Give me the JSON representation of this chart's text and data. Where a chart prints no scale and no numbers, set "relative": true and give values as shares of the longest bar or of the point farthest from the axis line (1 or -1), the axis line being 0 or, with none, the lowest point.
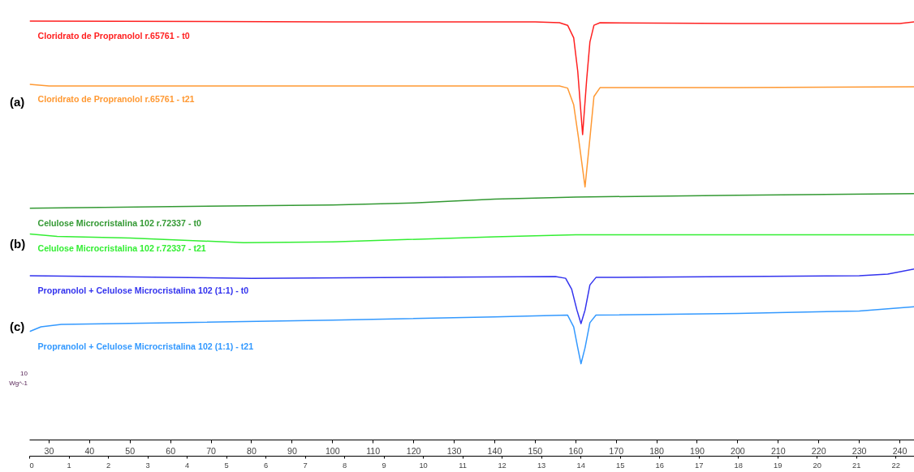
{
  "chart_data": {
    "type": "line",
    "relative": true,
    "xlim": [
      25.2,
      243.6
    ],
    "xticks": [
      30,
      40,
      50,
      60,
      70,
      80,
      90,
      100,
      110,
      120,
      130,
      140,
      150,
      160,
      170,
      180,
      190,
      200,
      210,
      220,
      230,
      240
    ],
    "x2lim": [
      0,
      22.47
    ],
    "x2ticks": [
      0,
      1,
      2,
      3,
      4,
      5,
      6,
      7,
      8,
      9,
      10,
      11,
      12,
      13,
      14,
      15,
      16,
      17,
      18,
      19,
      20,
      21,
      22
    ],
    "grid": false,
    "legend": false,
    "marker": "none",
    "line_style": "solid",
    "annotations": [
      "(a)",
      "(b)",
      "(c)",
      "10",
      "Wg^-1"
    ],
    "series": [
      {
        "name": "Cloridrato de Propranolol r.65761 - t0",
        "color": "#ff2020",
        "x": [
          25.2,
          100,
          150,
          156,
          158,
          159.5,
          160.5,
          161.7,
          162.7,
          163.5,
          164.5,
          166,
          200,
          240,
          243.6
        ],
        "values": [
          1.0,
          0.998,
          0.998,
          0.996,
          0.99,
          0.96,
          0.88,
          0.729,
          0.86,
          0.95,
          0.99,
          0.996,
          0.994,
          0.994,
          0.998
        ]
      },
      {
        "name": "Cloridrato de Propranolol r.65761 - t21",
        "color": "#ff9933",
        "x": [
          25.2,
          30,
          100,
          156,
          158,
          159.5,
          160.7,
          162.3,
          163.5,
          164.5,
          166,
          200,
          243.6
        ],
        "values": [
          0.849,
          0.845,
          0.845,
          0.845,
          0.84,
          0.8,
          0.72,
          0.604,
          0.72,
          0.82,
          0.841,
          0.841,
          0.843
        ]
      },
      {
        "name": "Celulose Microcristalina 102 r.72337 - t0",
        "color": "#339933",
        "x": [
          25.2,
          60,
          100,
          120,
          140,
          160,
          200,
          243.6
        ],
        "values": [
          0.553,
          0.557,
          0.561,
          0.566,
          0.575,
          0.58,
          0.584,
          0.588
        ]
      },
      {
        "name": "Celulose Microcristalina 102 r.72337 - t21",
        "color": "#33ee33",
        "x": [
          25.2,
          32,
          50,
          78,
          100,
          140,
          160,
          243.6
        ],
        "values": [
          0.492,
          0.486,
          0.482,
          0.471,
          0.473,
          0.485,
          0.49,
          0.49
        ]
      },
      {
        "name": "Propranolol + Celulose Microcristalina 102 (1:1) - t0",
        "color": "#3333ee",
        "x": [
          25.2,
          60,
          80,
          120,
          155,
          157.5,
          159,
          160.3,
          161.3,
          162.3,
          163.5,
          165,
          200,
          230,
          237,
          243.6
        ],
        "values": [
          0.392,
          0.388,
          0.386,
          0.388,
          0.39,
          0.386,
          0.36,
          0.31,
          0.278,
          0.31,
          0.37,
          0.388,
          0.39,
          0.392,
          0.396,
          0.408
        ]
      },
      {
        "name": "Propranolol + Celulose Microcristalina 102 (1:1) - t21",
        "color": "#3399ff",
        "x": [
          25.2,
          28,
          33,
          60,
          100,
          140,
          158,
          159.5,
          160.5,
          161.3,
          162.3,
          163.5,
          165,
          200,
          230,
          243.6
        ],
        "values": [
          0.259,
          0.27,
          0.276,
          0.28,
          0.286,
          0.294,
          0.298,
          0.27,
          0.22,
          0.182,
          0.22,
          0.28,
          0.298,
          0.302,
          0.308,
          0.318
        ]
      }
    ]
  }
}
